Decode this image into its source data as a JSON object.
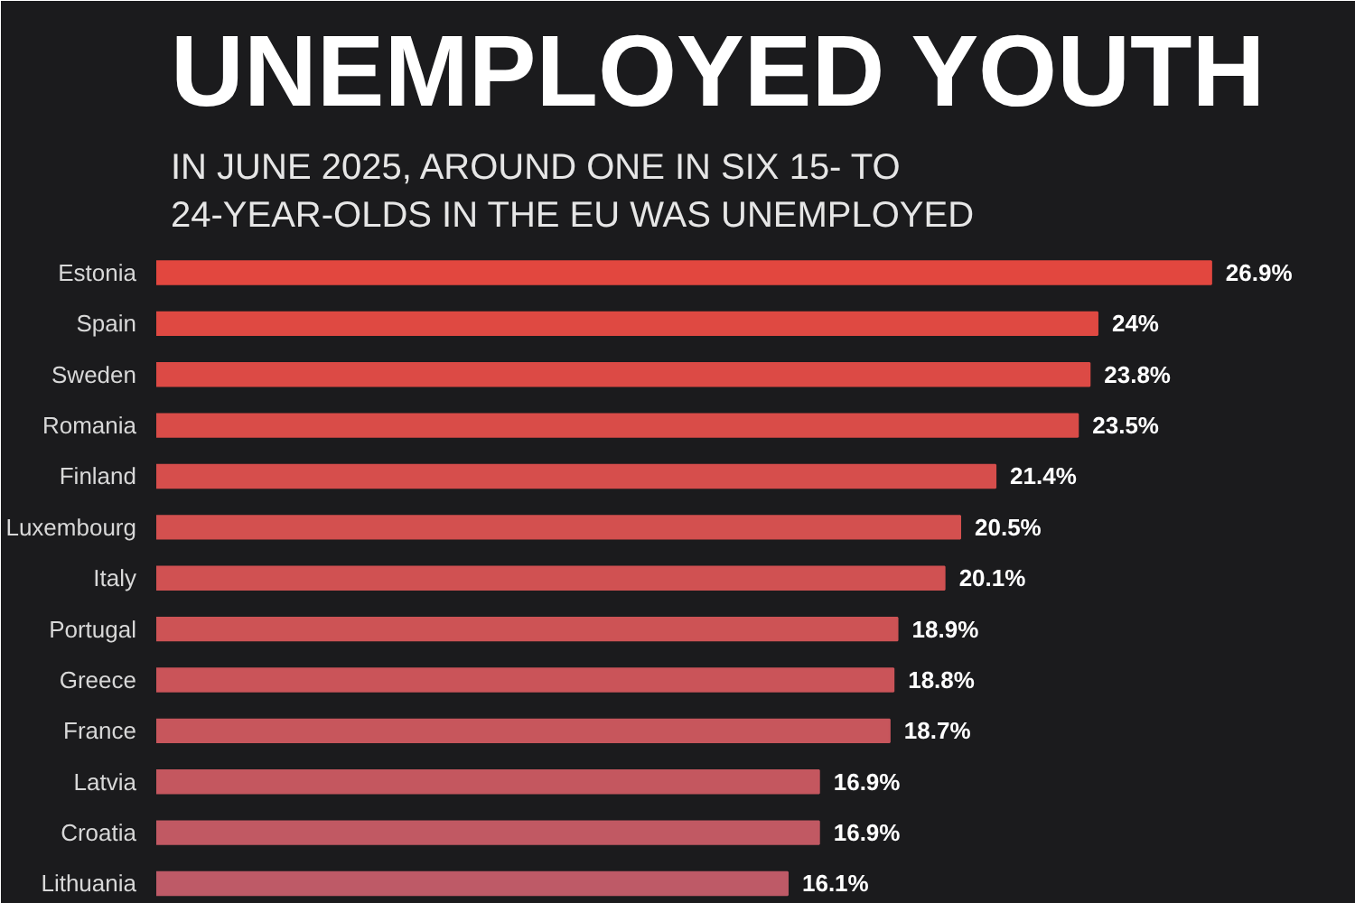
{
  "chart_data": {
    "type": "bar",
    "orientation": "horizontal",
    "title": "UNEMPLOYED YOUTH",
    "subtitle": "IN JUNE 2025, AROUND ONE IN SIX 15- TO\n24-YEAR-OLDS IN THE EU WAS UNEMPLOYED",
    "categories": [
      "Estonia",
      "Spain",
      "Sweden",
      "Romania",
      "Finland",
      "Luxembourg",
      "Italy",
      "Portugal",
      "Greece",
      "France",
      "Latvia",
      "Croatia",
      "Lithuania"
    ],
    "values": [
      26.9,
      24,
      23.8,
      23.5,
      21.4,
      20.5,
      20.1,
      18.9,
      18.8,
      18.7,
      16.9,
      16.9,
      16.1
    ],
    "value_labels": [
      "26.9%",
      "24%",
      "23.8%",
      "23.5%",
      "21.4%",
      "20.5%",
      "20.1%",
      "18.9%",
      "18.8%",
      "18.7%",
      "16.9%",
      "16.9%",
      "16.1%"
    ],
    "colors": [
      "#e2473f",
      "#df4942",
      "#dc4a45",
      "#d94c48",
      "#d64e4c",
      "#d3504f",
      "#d05152",
      "#cd5355",
      "#ca5459",
      "#c7565c",
      "#c4575f",
      "#c15963",
      "#be5a67"
    ],
    "grid": false
  }
}
